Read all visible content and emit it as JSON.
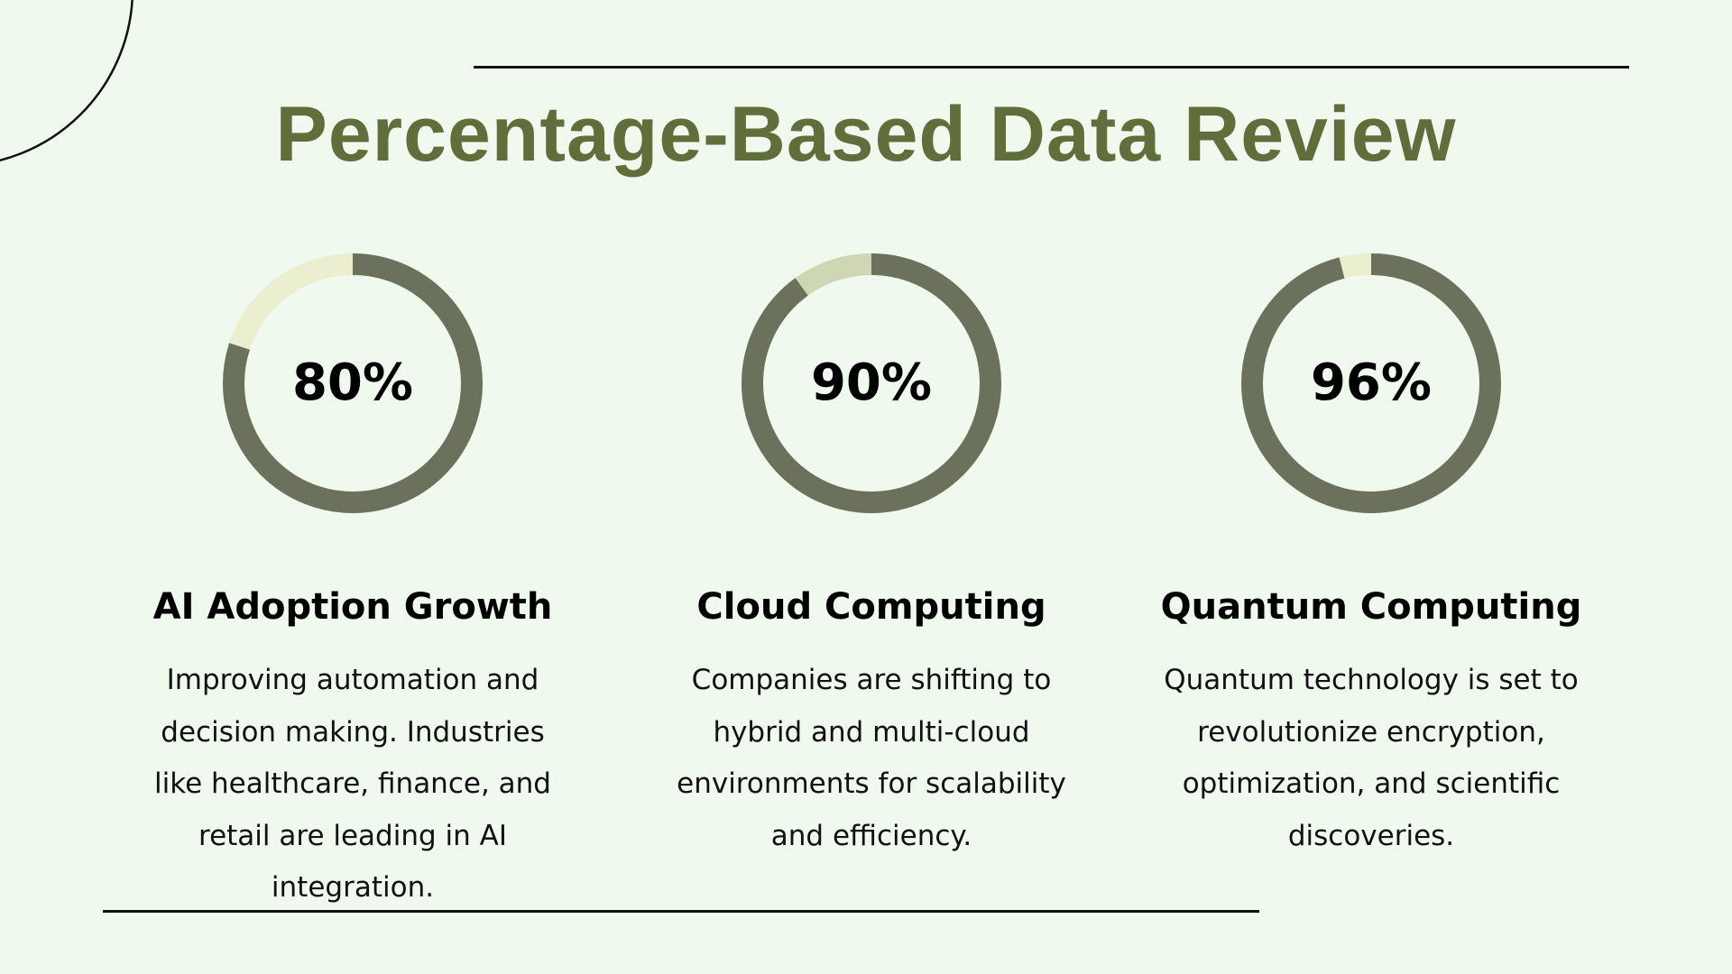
{
  "title": "Percentage-Based Data Review",
  "colors": {
    "background": "#eff9ee",
    "title": "#5f6e3a",
    "ring": "#6b715c",
    "remainder": "#ebefd0",
    "remainder_alt": "#cfd6b3"
  },
  "chart_data": {
    "type": "pie",
    "variant": "donut-progress",
    "items": [
      {
        "label": "AI Adoption Growth",
        "value": 80,
        "display": "80%",
        "description": "Improving automation and decision making. Industries like healthcare, finance, and retail are leading in AI integration."
      },
      {
        "label": "Cloud Computing",
        "value": 90,
        "display": "90%",
        "description": "Companies are shifting to hybrid and multi-cloud environments for scalability and efficiency."
      },
      {
        "label": "Quantum Computing",
        "value": 96,
        "display": "96%",
        "description": "Quantum technology is set to revolutionize encryption, optimization, and scientific discoveries."
      }
    ]
  }
}
